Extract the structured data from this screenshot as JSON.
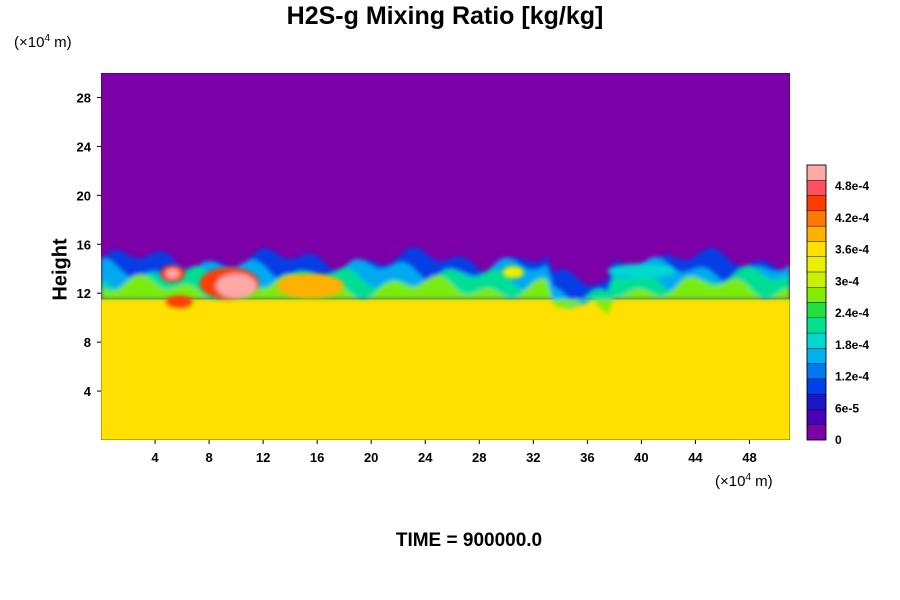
{
  "chart_data": {
    "type": "heatmap",
    "title": "H2S-g Mixing Ratio [kg/kg]",
    "xlabel": "",
    "ylabel": "Height",
    "x_unit_base": "(×10",
    "x_unit_exp": "4",
    "x_unit_tail": " m)",
    "y_unit_base": "(×10",
    "y_unit_exp": "4",
    "y_unit_tail": " m)",
    "xlim": [
      0,
      51
    ],
    "ylim": [
      0,
      30
    ],
    "x_ticks": [
      "4",
      "8",
      "12",
      "16",
      "20",
      "24",
      "28",
      "32",
      "36",
      "40",
      "44",
      "48"
    ],
    "y_ticks": [
      "4",
      "8",
      "12",
      "16",
      "20",
      "24",
      "28"
    ],
    "colorbar": {
      "min": 0,
      "max": 0.00052,
      "ticks": [
        "0",
        "6e-5",
        "1.2e-4",
        "1.8e-4",
        "2.4e-4",
        "3e-4",
        "3.6e-4",
        "4.2e-4",
        "4.8e-4"
      ],
      "colors": [
        "#7b00a8",
        "#4a00b8",
        "#1818c8",
        "#0040e8",
        "#0078f0",
        "#00b0f0",
        "#00d8d0",
        "#00e090",
        "#20e040",
        "#80ec00",
        "#c8f000",
        "#e8f000",
        "#ffe000",
        "#ffb000",
        "#ff7800",
        "#ff3c00",
        "#ff5060",
        "#ffa8a8"
      ]
    },
    "regions": {
      "upper_value": 0,
      "lower_value": 0.00035,
      "interface_height": 11.5,
      "max_value": 0.00052
    },
    "footer": "TIME = 900000.0"
  }
}
